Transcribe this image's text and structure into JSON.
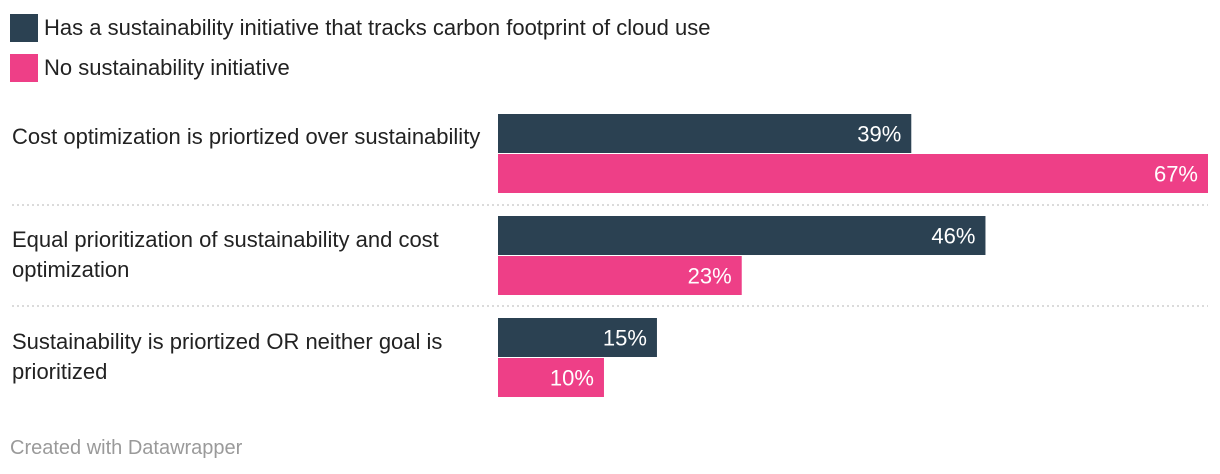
{
  "colors": {
    "series1": "#2b4152",
    "series2": "#ee3f87",
    "grid": "#cfcfcf"
  },
  "legend": [
    {
      "label": "Has a sustainability initiative that tracks carbon footprint of cloud use"
    },
    {
      "label": "No sustainability initiative"
    }
  ],
  "chart_data": {
    "type": "bar",
    "orientation": "horizontal",
    "categories": [
      "Cost optimization is priortized over sustainability",
      "Equal prioritization of sustainability and cost optimization",
      "Sustainability is priortized OR neither goal is prioritized"
    ],
    "series": [
      {
        "name": "Has a sustainability initiative that tracks carbon footprint of cloud use",
        "values": [
          39,
          46,
          15
        ],
        "labels": [
          "39%",
          "46%",
          "15%"
        ]
      },
      {
        "name": "No sustainability initiative",
        "values": [
          67,
          23,
          10
        ],
        "labels": [
          "67%",
          "23%",
          "10%"
        ]
      }
    ],
    "xlim": [
      0,
      67
    ],
    "legend_position": "top-left",
    "grid": false
  },
  "footer": {
    "credit": "Created with Datawrapper"
  }
}
